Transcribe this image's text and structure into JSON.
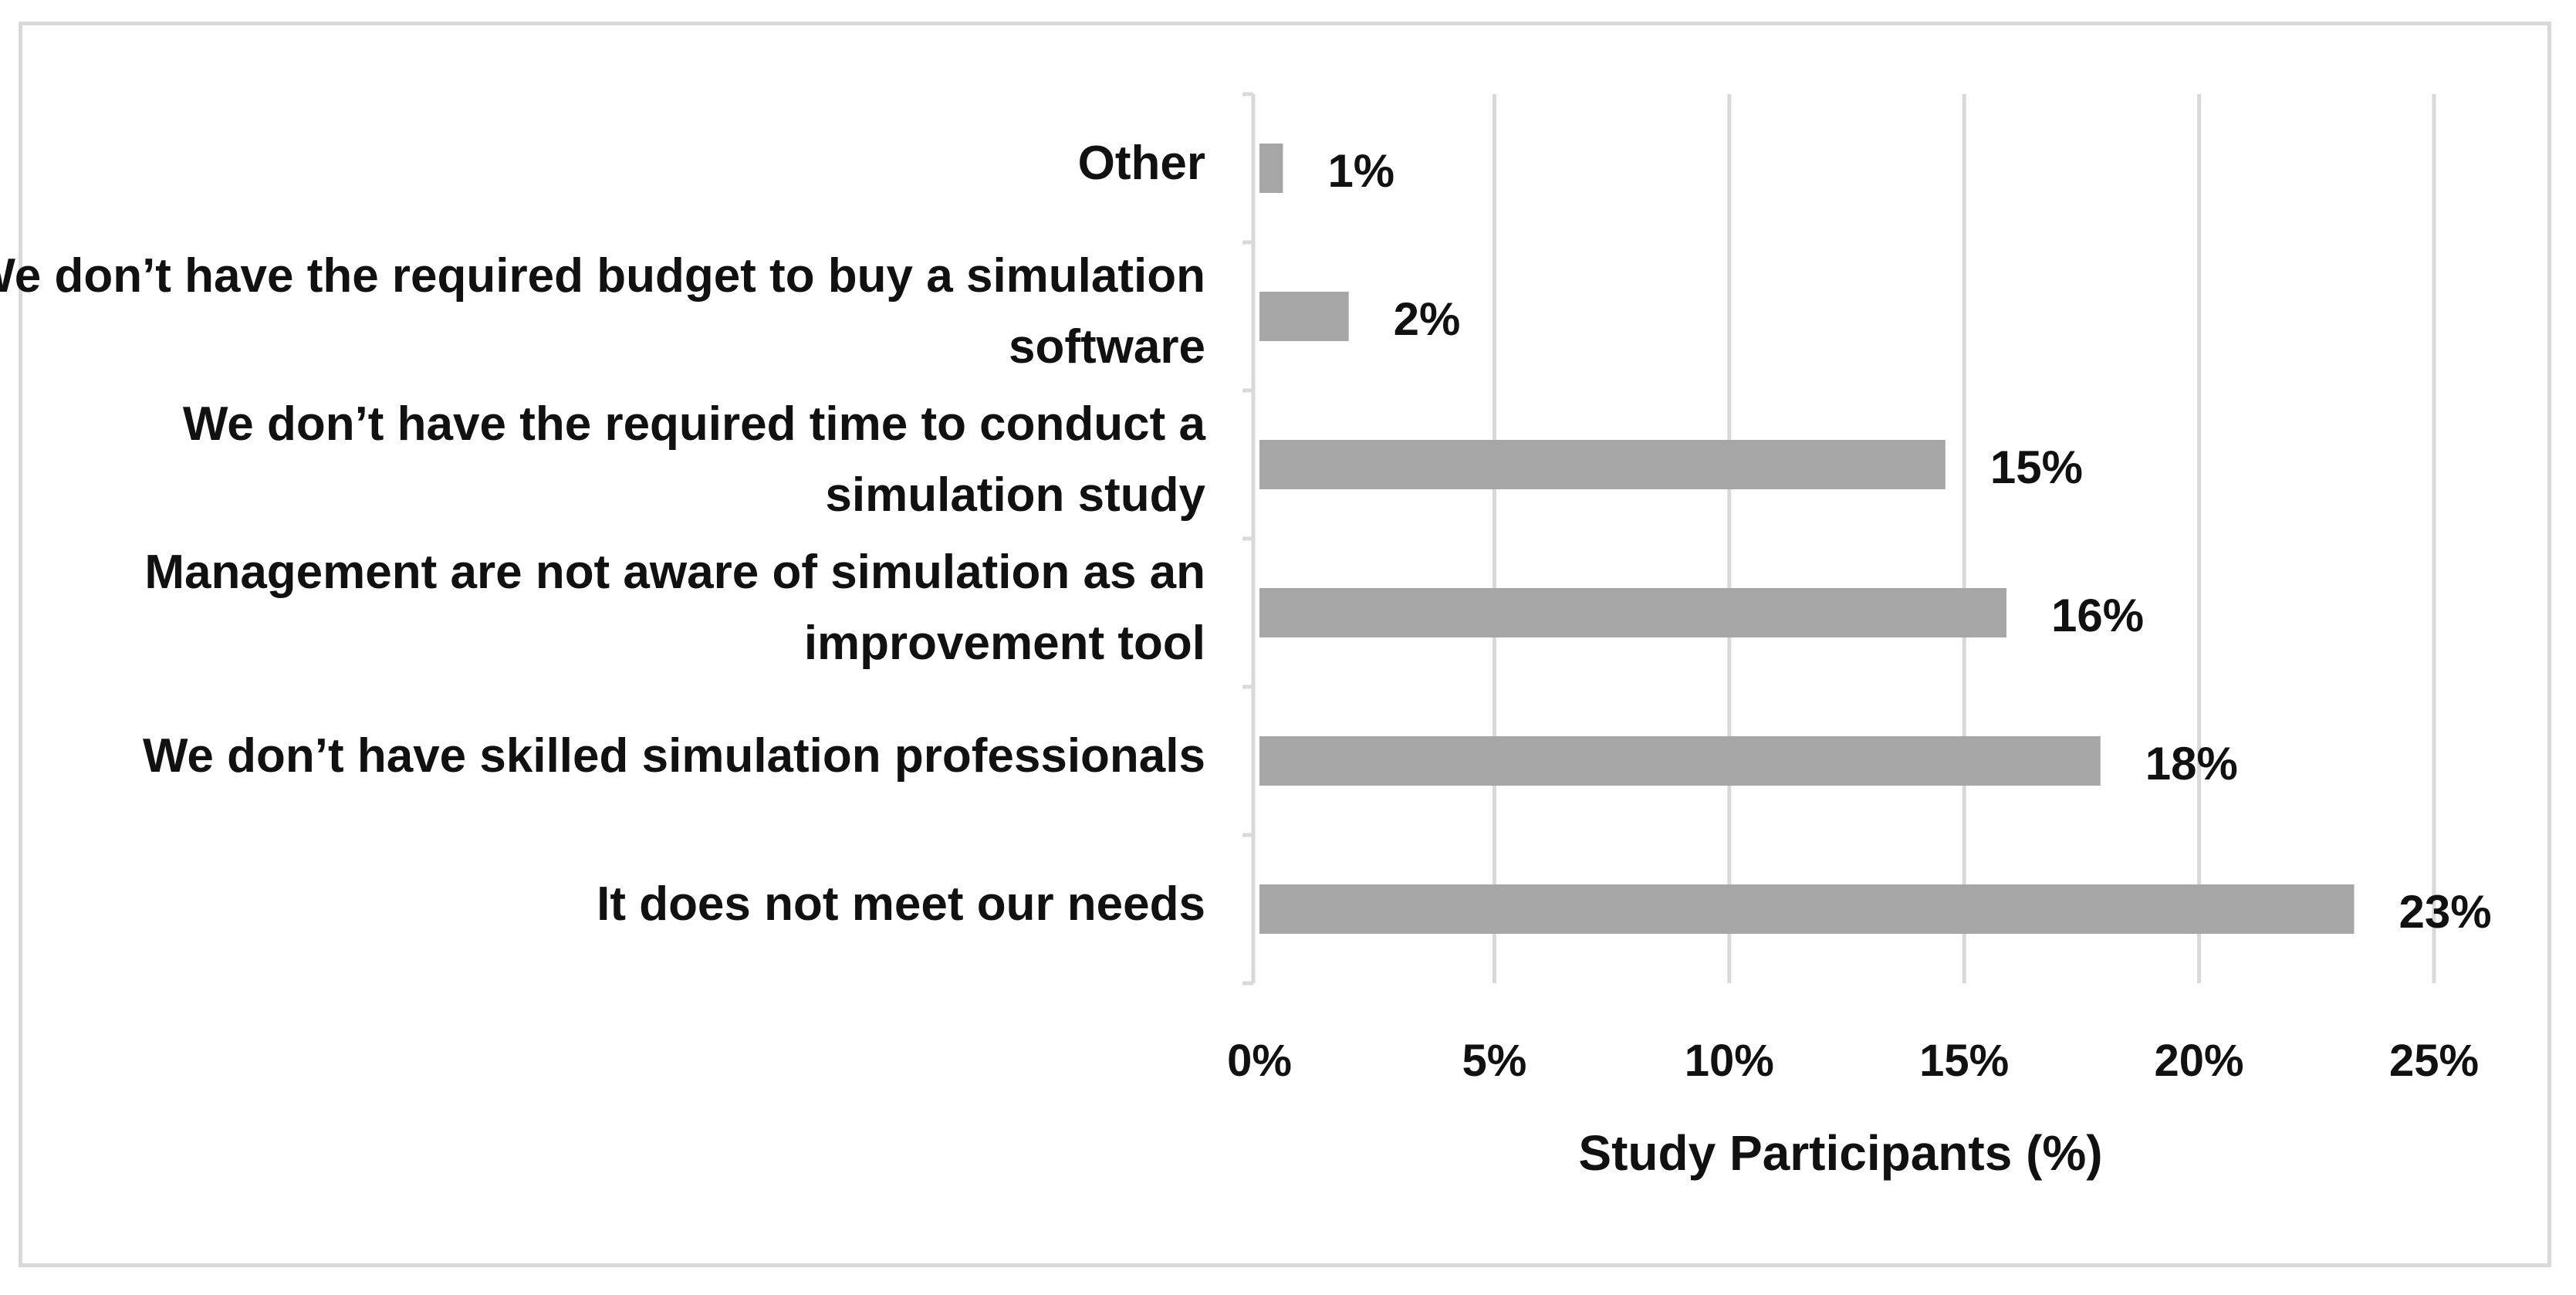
{
  "chart_data": {
    "type": "bar",
    "orientation": "horizontal",
    "categories": [
      "Other",
      "We don’t have the required budget to buy a simulation software",
      "We don’t have the required time to conduct a simulation study",
      "Management are not aware of simulation as an improvement tool",
      "We don’t have skilled simulation professionals",
      "It does not meet our needs"
    ],
    "values": [
      0.5,
      1.9,
      14.6,
      15.9,
      17.9,
      23.3
    ],
    "data_labels": [
      "1%",
      "2%",
      "15%",
      "16%",
      "18%",
      "23%"
    ],
    "xlabel": "Study Participants  (%)",
    "ylabel": "",
    "xlim": [
      0,
      25
    ],
    "x_ticks": [
      0,
      5,
      10,
      15,
      20,
      25
    ],
    "x_tick_labels": [
      "0%",
      "5%",
      "10%",
      "15%",
      "20%",
      "25%"
    ],
    "grid": "vertical",
    "legend": "none",
    "bar_color": "#a6a6a6",
    "grid_color": "#d9d9d9"
  }
}
